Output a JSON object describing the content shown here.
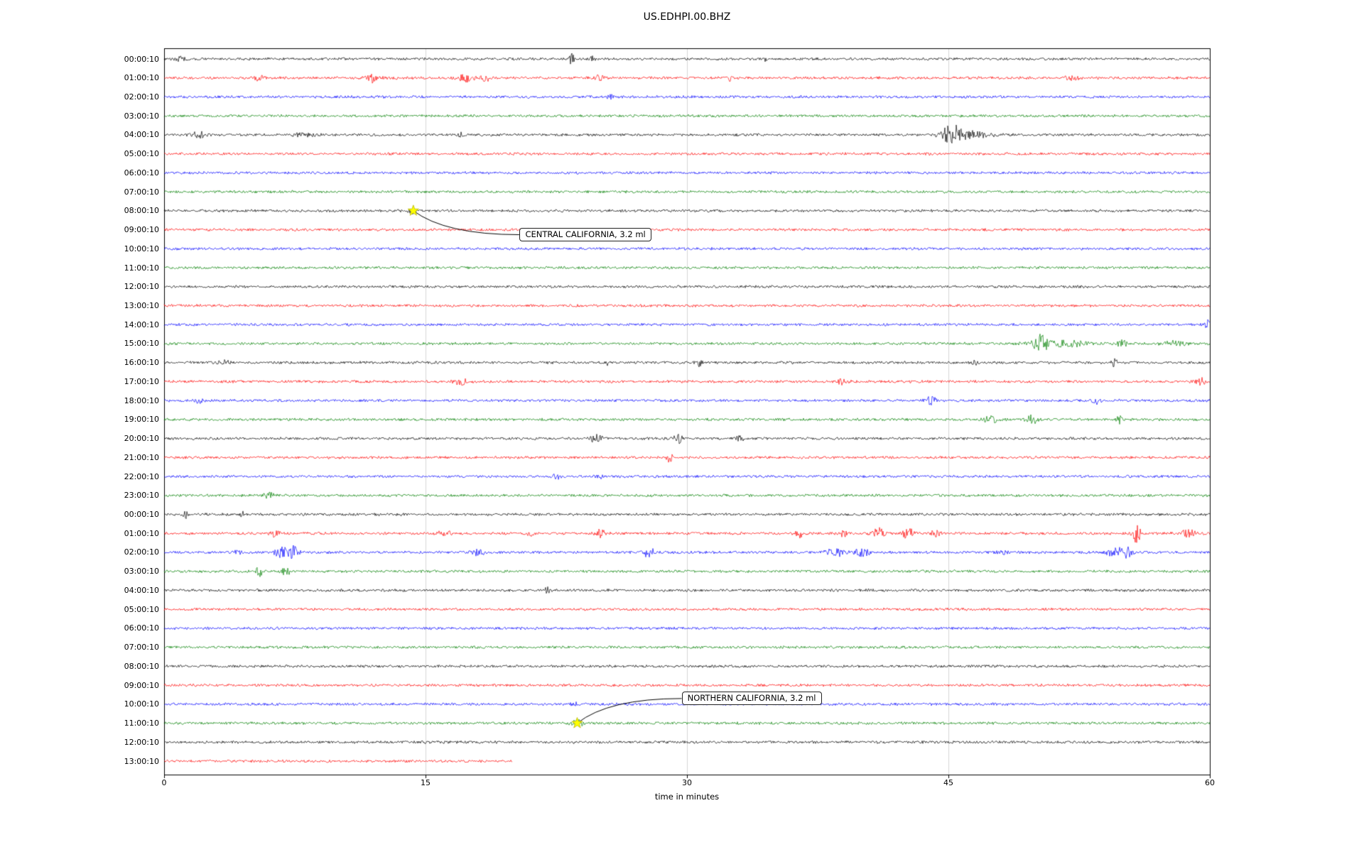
{
  "chart_data": {
    "type": "line",
    "subtype": "seismogram-helicorder",
    "title": "US.EDHPI.00.BHZ",
    "xlabel": "time in minutes",
    "xlim": [
      0,
      60
    ],
    "x_ticks": [
      0,
      15,
      30,
      45,
      60
    ],
    "grid_minutes": [
      15,
      30,
      45
    ],
    "grid_on": true,
    "colors": {
      "background": "#ffffff",
      "axis": "#000000",
      "grid": "#cccccc",
      "star": "#ffff00"
    },
    "trace_colors": [
      "#000000",
      "#ff0000",
      "#0000ff",
      "#008000"
    ],
    "noise_amp": 1.7,
    "rows": [
      {
        "label": "00:00:10",
        "end": 60,
        "events": [
          {
            "t": 1,
            "a": 3,
            "w": 0.2
          },
          {
            "t": 23.4,
            "a": 7,
            "w": 0.12
          },
          {
            "t": 24.6,
            "a": 4,
            "w": 0.1
          },
          {
            "t": 34.5,
            "a": 4,
            "w": 0.08
          }
        ]
      },
      {
        "label": "01:00:10",
        "end": 60,
        "events": [
          {
            "t": 5.5,
            "a": 5,
            "w": 0.2
          },
          {
            "t": 12,
            "a": 6,
            "w": 0.25
          },
          {
            "t": 17.3,
            "a": 6,
            "w": 0.3
          },
          {
            "t": 18.4,
            "a": 5,
            "w": 0.2
          },
          {
            "t": 25,
            "a": 4,
            "w": 0.2
          },
          {
            "t": 32.5,
            "a": 4,
            "w": 0.1
          },
          {
            "t": 52,
            "a": 3,
            "w": 0.3
          }
        ]
      },
      {
        "label": "02:00:10",
        "end": 60,
        "events": [
          {
            "t": 25.6,
            "a": 6,
            "w": 0.1
          }
        ]
      },
      {
        "label": "03:00:10",
        "end": 60,
        "events": []
      },
      {
        "label": "04:00:10",
        "end": 60,
        "events": [
          {
            "t": 2,
            "a": 4,
            "w": 0.3
          },
          {
            "t": 8,
            "a": 2.5,
            "w": 0.4
          },
          {
            "t": 17,
            "a": 3,
            "w": 0.15
          },
          {
            "t": 45.2,
            "a": 13,
            "w": 0.45
          },
          {
            "t": 46.5,
            "a": 4,
            "w": 0.8
          }
        ]
      },
      {
        "label": "05:00:10",
        "end": 60,
        "events": []
      },
      {
        "label": "06:00:10",
        "end": 60,
        "events": []
      },
      {
        "label": "07:00:10",
        "end": 60,
        "events": []
      },
      {
        "label": "08:00:10",
        "end": 60,
        "events": [
          {
            "t": 14.3,
            "a": 3,
            "w": 0.2
          }
        ]
      },
      {
        "label": "09:00:10",
        "end": 60,
        "events": []
      },
      {
        "label": "10:00:10",
        "end": 60,
        "events": []
      },
      {
        "label": "11:00:10",
        "end": 60,
        "events": []
      },
      {
        "label": "12:00:10",
        "end": 60,
        "events": []
      },
      {
        "label": "13:00:10",
        "end": 60,
        "events": []
      },
      {
        "label": "14:00:10",
        "end": 60,
        "events": [
          {
            "t": 59.9,
            "a": 6,
            "w": 0.12
          }
        ]
      },
      {
        "label": "15:00:10",
        "end": 60,
        "events": [
          {
            "t": 50.3,
            "a": 11,
            "w": 0.25
          },
          {
            "t": 51.5,
            "a": 4,
            "w": 1.2
          },
          {
            "t": 55,
            "a": 5,
            "w": 0.2
          },
          {
            "t": 58,
            "a": 3.5,
            "w": 0.5
          }
        ]
      },
      {
        "label": "16:00:10",
        "end": 60,
        "events": [
          {
            "t": 3.5,
            "a": 4,
            "w": 0.2
          },
          {
            "t": 25.5,
            "a": 4,
            "w": 0.1
          },
          {
            "t": 30.7,
            "a": 6,
            "w": 0.12
          },
          {
            "t": 46.5,
            "a": 4,
            "w": 0.1
          },
          {
            "t": 54.5,
            "a": 5,
            "w": 0.15
          }
        ]
      },
      {
        "label": "17:00:10",
        "end": 60,
        "events": [
          {
            "t": 17,
            "a": 4,
            "w": 0.3
          },
          {
            "t": 39,
            "a": 5,
            "w": 0.25
          },
          {
            "t": 59.5,
            "a": 5,
            "w": 0.2
          }
        ]
      },
      {
        "label": "18:00:10",
        "end": 60,
        "events": [
          {
            "t": 2,
            "a": 5,
            "w": 0.15
          },
          {
            "t": 44,
            "a": 5,
            "w": 0.2
          },
          {
            "t": 53.5,
            "a": 5,
            "w": 0.15
          }
        ]
      },
      {
        "label": "19:00:10",
        "end": 60,
        "events": [
          {
            "t": 47.5,
            "a": 5,
            "w": 0.3
          },
          {
            "t": 49.8,
            "a": 6,
            "w": 0.2
          },
          {
            "t": 54.8,
            "a": 6,
            "w": 0.12
          }
        ]
      },
      {
        "label": "20:00:10",
        "end": 60,
        "events": [
          {
            "t": 24.8,
            "a": 6,
            "w": 0.25
          },
          {
            "t": 29.5,
            "a": 6,
            "w": 0.2
          },
          {
            "t": 33,
            "a": 3,
            "w": 0.2
          }
        ]
      },
      {
        "label": "21:00:10",
        "end": 60,
        "events": [
          {
            "t": 29,
            "a": 6,
            "w": 0.12
          }
        ]
      },
      {
        "label": "22:00:10",
        "end": 60,
        "events": [
          {
            "t": 22.5,
            "a": 4,
            "w": 0.15
          },
          {
            "t": 25,
            "a": 3,
            "w": 0.15
          }
        ]
      },
      {
        "label": "23:00:10",
        "end": 60,
        "events": [
          {
            "t": 6,
            "a": 4,
            "w": 0.2
          }
        ]
      },
      {
        "label": "00:00:10",
        "end": 60,
        "events": [
          {
            "t": 1.2,
            "a": 7,
            "w": 0.08
          },
          {
            "t": 4.5,
            "a": 4,
            "w": 0.1
          }
        ]
      },
      {
        "label": "01:00:10",
        "end": 60,
        "events": [
          {
            "t": 6.3,
            "a": 5,
            "w": 0.2
          },
          {
            "t": 16,
            "a": 4,
            "w": 0.3
          },
          {
            "t": 21,
            "a": 4,
            "w": 0.15
          },
          {
            "t": 25,
            "a": 6,
            "w": 0.2
          },
          {
            "t": 36.5,
            "a": 5,
            "w": 0.2
          },
          {
            "t": 39,
            "a": 5,
            "w": 0.15
          },
          {
            "t": 41,
            "a": 7,
            "w": 0.25
          },
          {
            "t": 42.7,
            "a": 7,
            "w": 0.25
          },
          {
            "t": 44.3,
            "a": 5,
            "w": 0.2
          },
          {
            "t": 55.8,
            "a": 12,
            "w": 0.18
          },
          {
            "t": 58.8,
            "a": 5,
            "w": 0.3
          }
        ]
      },
      {
        "label": "02:00:10",
        "end": 60,
        "events": [
          {
            "t": 4.2,
            "a": 4,
            "w": 0.2
          },
          {
            "t": 6.7,
            "a": 12,
            "w": 0.22
          },
          {
            "t": 7.4,
            "a": 9,
            "w": 0.2
          },
          {
            "t": 18,
            "a": 5,
            "w": 0.25
          },
          {
            "t": 27.8,
            "a": 6,
            "w": 0.25
          },
          {
            "t": 38.5,
            "a": 6,
            "w": 0.35
          },
          {
            "t": 40,
            "a": 5,
            "w": 0.3
          },
          {
            "t": 48,
            "a": 3,
            "w": 0.3
          },
          {
            "t": 54.6,
            "a": 7,
            "w": 0.35
          },
          {
            "t": 55.3,
            "a": 6,
            "w": 0.2
          }
        ]
      },
      {
        "label": "03:00:10",
        "end": 60,
        "events": [
          {
            "t": 5.5,
            "a": 8,
            "w": 0.15
          },
          {
            "t": 7,
            "a": 10,
            "w": 0.12
          }
        ]
      },
      {
        "label": "04:00:10",
        "end": 60,
        "events": [
          {
            "t": 22,
            "a": 4,
            "w": 0.1
          }
        ]
      },
      {
        "label": "05:00:10",
        "end": 60,
        "events": []
      },
      {
        "label": "06:00:10",
        "end": 60,
        "events": []
      },
      {
        "label": "07:00:10",
        "end": 60,
        "events": []
      },
      {
        "label": "08:00:10",
        "end": 60,
        "events": []
      },
      {
        "label": "09:00:10",
        "end": 60,
        "events": []
      },
      {
        "label": "10:00:10",
        "end": 60,
        "events": [
          {
            "t": 23.5,
            "a": 3,
            "w": 0.12
          }
        ]
      },
      {
        "label": "11:00:10",
        "end": 60,
        "events": [
          {
            "t": 23.7,
            "a": 4,
            "w": 0.3
          }
        ]
      },
      {
        "label": "12:00:10",
        "end": 60,
        "events": []
      },
      {
        "label": "13:00:10",
        "end": 20,
        "events": []
      }
    ],
    "annotations": [
      {
        "text": "CENTRAL CALIFORNIA, 3.2 ml",
        "star_row": 8,
        "star_minute": 14.3,
        "box_minute": 20.4,
        "box_row": 9,
        "box_dy": 7
      },
      {
        "text": "NORTHERN CALIFORNIA, 3.2 ml",
        "star_row": 35,
        "star_minute": 23.7,
        "box_minute": 29.7,
        "box_row": 34,
        "box_dy": -8
      }
    ]
  }
}
